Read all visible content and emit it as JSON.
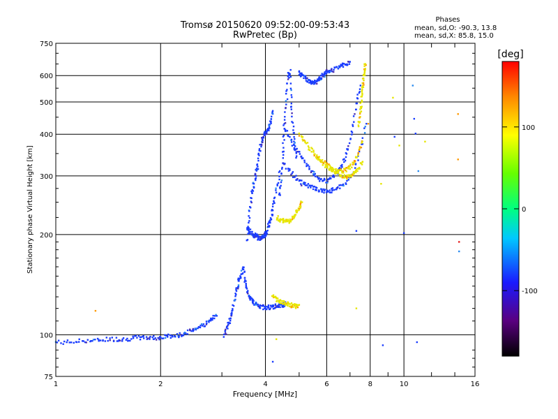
{
  "chart_data": {
    "type": "scatter",
    "title": "Tromsø 20150620 09:52:00-09:53:43",
    "subtitle": "RwPretec (Bp)",
    "xlabel": "Frequency [MHz]",
    "ylabel": "Stationary phase Virtual Height [km]",
    "x_scale": "log",
    "y_scale": "log",
    "xlim": [
      1,
      16
    ],
    "ylim": [
      75,
      750
    ],
    "x_ticks": [
      1,
      2,
      4,
      6,
      8,
      10,
      16
    ],
    "x_tick_labels": [
      "1",
      "2",
      "4",
      "6",
      "8",
      "10",
      "16"
    ],
    "y_ticks": [
      75,
      100,
      200,
      300,
      400,
      500,
      600,
      750
    ],
    "y_tick_labels": [
      "75",
      "100",
      "200",
      "300",
      "400",
      "500",
      "600",
      "750"
    ],
    "grid": true,
    "annotation": {
      "title": "Phases",
      "line1": "mean, sd,O:  -90.3, 13.8",
      "line2": "mean, sd,X:  85.8, 15.0"
    },
    "colorbar": {
      "label": "[deg]",
      "range": [
        -180,
        180
      ],
      "tick_values": [
        100,
        0,
        -100
      ],
      "tick_labels": [
        "100",
        "0",
        "-100"
      ]
    },
    "colors": {
      "o_mode": "#1a3cff",
      "o_mode_low": "#2a8cf0",
      "x_mode": "#e6e600",
      "x_mode_orange": "#ff9900",
      "purple": "#4b2fb0",
      "cyan": "#22cccc",
      "red": "#e62020"
    },
    "series": [
      {
        "mode": "O",
        "traces": [
          {
            "phase": -100,
            "x": [
              1.0,
              1.1,
              1.2,
              1.3,
              1.4,
              1.5,
              1.6,
              1.7,
              1.8,
              1.9,
              2.0,
              2.1,
              2.2,
              2.3,
              2.4,
              2.5,
              2.6,
              2.7,
              2.8,
              2.9
            ],
            "y": [
              95,
              95,
              96,
              96,
              97,
              97,
              97,
              98,
              98,
              98,
              98,
              99,
              99,
              100,
              102,
              104,
              106,
              108,
              111,
              114
            ]
          },
          {
            "phase": -100,
            "x": [
              3.05,
              3.1,
              3.15,
              3.2,
              3.25,
              3.3,
              3.35,
              3.4,
              3.45,
              3.5,
              3.55,
              3.6,
              3.65,
              3.7,
              3.8,
              3.9,
              4.0,
              4.1,
              4.2,
              4.3,
              4.4,
              4.5,
              4.6
            ],
            "y": [
              100,
              105,
              110,
              115,
              125,
              135,
              145,
              150,
              160,
              145,
              135,
              130,
              128,
              125,
              122,
              121,
              121,
              121,
              121,
              122,
              122,
              123,
              124
            ]
          },
          {
            "phase": -100,
            "x": [
              3.55,
              3.6,
              3.65,
              3.7,
              3.75,
              3.8,
              3.85,
              3.9,
              3.95,
              4.0,
              4.05,
              4.1,
              4.15,
              4.2
            ],
            "y": [
              190,
              230,
              260,
              280,
              300,
              320,
              360,
              380,
              395,
              400,
              410,
              420,
              440,
              470
            ]
          },
          {
            "phase": -100,
            "x": [
              3.55,
              3.6,
              3.65,
              3.7,
              3.75,
              3.8,
              3.85,
              3.9,
              3.95,
              4.0,
              4.05,
              4.1,
              4.15,
              4.2,
              4.3,
              4.4
            ],
            "y": [
              210,
              205,
              202,
              200,
              198,
              196,
              195,
              196,
              198,
              200,
              205,
              215,
              225,
              240,
              270,
              310
            ]
          },
          {
            "phase": -100,
            "x": [
              4.4,
              4.45,
              4.5,
              4.55,
              4.6,
              4.65,
              4.7,
              4.75,
              4.8,
              4.85,
              4.9
            ],
            "y": [
              260,
              300,
              360,
              430,
              500,
              600,
              620,
              500,
              420,
              370,
              340
            ]
          },
          {
            "phase": -100,
            "x": [
              4.5,
              4.7,
              4.9,
              5.1,
              5.3,
              5.5,
              5.7,
              5.9,
              6.1,
              6.3,
              6.6,
              6.9,
              7.2,
              7.5,
              7.8
            ],
            "y": [
              330,
              310,
              295,
              285,
              280,
              275,
              272,
              270,
              270,
              272,
              278,
              290,
              310,
              360,
              430
            ]
          },
          {
            "phase": -100,
            "x": [
              4.5,
              4.7,
              4.9,
              5.1,
              5.3,
              5.5,
              5.7,
              5.9,
              6.1,
              6.3,
              6.5,
              6.7,
              6.9,
              7.1,
              7.3,
              7.5
            ],
            "y": [
              420,
              390,
              360,
              340,
              320,
              305,
              295,
              290,
              290,
              300,
              310,
              330,
              360,
              410,
              490,
              560
            ]
          },
          {
            "phase": -100,
            "x": [
              5.0,
              5.1,
              5.2,
              5.3,
              5.4,
              5.5,
              5.6,
              5.7,
              5.8,
              5.9,
              6.0,
              6.2,
              6.4,
              6.6,
              6.8,
              7.0
            ],
            "y": [
              610,
              600,
              590,
              580,
              575,
              570,
              575,
              585,
              595,
              605,
              615,
              620,
              630,
              640,
              650,
              660
            ]
          }
        ]
      },
      {
        "mode": "X",
        "traces": [
          {
            "phase": 85,
            "x": [
              4.2,
              4.3,
              4.4,
              4.5,
              4.6,
              4.7,
              4.8,
              4.9,
              5.0
            ],
            "y": [
              130,
              128,
              126,
              125,
              124,
              123,
              122,
              122,
              123
            ]
          },
          {
            "phase": 85,
            "x": [
              4.3,
              4.4,
              4.5,
              4.6,
              4.7,
              4.8,
              4.9,
              5.0,
              5.1
            ],
            "y": [
              225,
              222,
              220,
              218,
              220,
              225,
              232,
              240,
              250
            ]
          },
          {
            "phase": 85,
            "x": [
              5.0,
              5.2,
              5.4,
              5.6,
              5.8,
              6.0,
              6.2,
              6.4,
              6.6,
              6.8,
              7.0,
              7.2,
              7.4,
              7.6
            ],
            "y": [
              400,
              380,
              360,
              345,
              332,
              320,
              312,
              305,
              300,
              298,
              300,
              305,
              315,
              330
            ]
          },
          {
            "phase": 85,
            "x": [
              5.6,
              5.8,
              6.0,
              6.2,
              6.4,
              6.6,
              6.8,
              7.0,
              7.2,
              7.4,
              7.6
            ],
            "y": [
              345,
              335,
              325,
              318,
              312,
              310,
              312,
              318,
              330,
              350,
              380
            ]
          },
          {
            "phase": 85,
            "x": [
              7.4,
              7.5,
              7.55,
              7.6,
              7.65,
              7.7,
              7.75
            ],
            "y": [
              420,
              460,
              500,
              540,
              580,
              620,
              650
            ]
          }
        ]
      },
      {
        "mode": "scatter",
        "points": [
          {
            "x": 1.3,
            "y": 118,
            "phase": 120
          },
          {
            "x": 4.3,
            "y": 97,
            "phase": 100
          },
          {
            "x": 4.2,
            "y": 83,
            "phase": -100
          },
          {
            "x": 7.3,
            "y": 120,
            "phase": 110
          },
          {
            "x": 8.6,
            "y": 284,
            "phase": 110
          },
          {
            "x": 8.7,
            "y": 93,
            "phase": -100
          },
          {
            "x": 9.3,
            "y": 515,
            "phase": 90
          },
          {
            "x": 9.4,
            "y": 393,
            "phase": -100
          },
          {
            "x": 9.7,
            "y": 370,
            "phase": 90
          },
          {
            "x": 10.0,
            "y": 202,
            "phase": -100
          },
          {
            "x": 10.6,
            "y": 560,
            "phase": -60
          },
          {
            "x": 10.7,
            "y": 445,
            "phase": -100
          },
          {
            "x": 10.8,
            "y": 402,
            "phase": -100
          },
          {
            "x": 10.9,
            "y": 95,
            "phase": -110
          },
          {
            "x": 11.0,
            "y": 310,
            "phase": -40
          },
          {
            "x": 11.5,
            "y": 380,
            "phase": 90
          },
          {
            "x": 14.3,
            "y": 460,
            "phase": 120
          },
          {
            "x": 14.3,
            "y": 336,
            "phase": 130
          },
          {
            "x": 14.4,
            "y": 190,
            "phase": 160
          },
          {
            "x": 14.4,
            "y": 178,
            "phase": -40
          },
          {
            "x": 7.3,
            "y": 205,
            "phase": -100
          },
          {
            "x": 7.9,
            "y": 430,
            "phase": 120
          }
        ]
      }
    ]
  }
}
